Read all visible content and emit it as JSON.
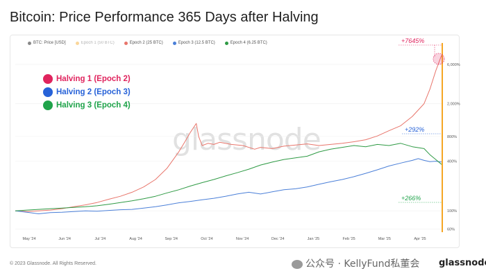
{
  "title": "Bitcoin: Price Performance 365 Days after Halving",
  "legend_top": [
    {
      "label": "BTC: Price [USD]",
      "color": "#888888"
    },
    {
      "label": "Epoch 1 (50 BTC)",
      "color": "#f5a623"
    },
    {
      "label": "Epoch 2 (25 BTC)",
      "color": "#e8756b"
    },
    {
      "label": "Epoch 3 (12.5 BTC)",
      "color": "#4a7fd8"
    },
    {
      "label": "Epoch 4 (6.25 BTC)",
      "color": "#2e9a44"
    }
  ],
  "big_legend": [
    {
      "label": "Halving 1 (Epoch 2)",
      "color": "#e0245e"
    },
    {
      "label": "Halving 2 (Epoch 3)",
      "color": "#2762d8"
    },
    {
      "label": "Halving 3 (Epoch 4)",
      "color": "#1fa34a"
    }
  ],
  "watermark": "glassnode",
  "footer": "© 2023 Glassnode. All Rights Reserved.",
  "brand_text": "公众号 · KellyFund私董会",
  "brand_logo": "glassnode",
  "chart_data": {
    "type": "line",
    "x_ticks": [
      "May '24",
      "Jun '24",
      "Jul '24",
      "Aug '24",
      "Sep '24",
      "Oct '24",
      "Nov '24",
      "Dec '24",
      "Jan '25",
      "Feb '25",
      "Mar '25",
      "Apr '25"
    ],
    "y_ticks": [
      {
        "label": "6,000%",
        "value": 6000
      },
      {
        "label": "2,000%",
        "value": 2000
      },
      {
        "label": "800%",
        "value": 800
      },
      {
        "label": "400%",
        "value": 400
      },
      {
        "label": "100%",
        "value": 100
      },
      {
        "label": "60%",
        "value": 60
      }
    ],
    "y_scale": "log",
    "ylim": [
      55,
      9000
    ],
    "day_range": [
      0,
      365
    ],
    "annotations": [
      {
        "text": "+7645%",
        "color": "#e0245e",
        "value": 7645
      },
      {
        "text": "+292%",
        "color": "#2762d8",
        "value": 292
      },
      {
        "text": "+266%",
        "color": "#1fa34a",
        "value": 266
      }
    ],
    "series": [
      {
        "name": "Epoch 2 (25 BTC)",
        "color": "#e8756b",
        "points": [
          [
            0,
            100
          ],
          [
            10,
            98
          ],
          [
            20,
            100
          ],
          [
            30,
            102
          ],
          [
            40,
            106
          ],
          [
            50,
            112
          ],
          [
            60,
            118
          ],
          [
            70,
            126
          ],
          [
            80,
            138
          ],
          [
            90,
            150
          ],
          [
            100,
            168
          ],
          [
            110,
            195
          ],
          [
            120,
            240
          ],
          [
            130,
            330
          ],
          [
            140,
            520
          ],
          [
            145,
            680
          ],
          [
            150,
            900
          ],
          [
            155,
            1150
          ],
          [
            157,
            800
          ],
          [
            160,
            620
          ],
          [
            165,
            660
          ],
          [
            170,
            640
          ],
          [
            175,
            680
          ],
          [
            185,
            640
          ],
          [
            195,
            620
          ],
          [
            205,
            560
          ],
          [
            210,
            590
          ],
          [
            220,
            570
          ],
          [
            230,
            610
          ],
          [
            240,
            630
          ],
          [
            250,
            650
          ],
          [
            260,
            620
          ],
          [
            270,
            640
          ],
          [
            280,
            660
          ],
          [
            290,
            690
          ],
          [
            300,
            730
          ],
          [
            310,
            810
          ],
          [
            320,
            940
          ],
          [
            330,
            1080
          ],
          [
            340,
            1400
          ],
          [
            350,
            2000
          ],
          [
            355,
            3000
          ],
          [
            360,
            5000
          ],
          [
            365,
            7745
          ]
        ]
      },
      {
        "name": "Epoch 3 (12.5 BTC)",
        "color": "#4a7fd8",
        "points": [
          [
            0,
            100
          ],
          [
            10,
            96
          ],
          [
            20,
            92
          ],
          [
            30,
            95
          ],
          [
            40,
            96
          ],
          [
            50,
            98
          ],
          [
            60,
            100
          ],
          [
            70,
            99
          ],
          [
            80,
            101
          ],
          [
            90,
            103
          ],
          [
            100,
            104
          ],
          [
            110,
            108
          ],
          [
            120,
            112
          ],
          [
            130,
            118
          ],
          [
            140,
            125
          ],
          [
            150,
            130
          ],
          [
            160,
            136
          ],
          [
            170,
            142
          ],
          [
            180,
            150
          ],
          [
            190,
            160
          ],
          [
            200,
            168
          ],
          [
            210,
            160
          ],
          [
            220,
            170
          ],
          [
            230,
            180
          ],
          [
            240,
            185
          ],
          [
            250,
            195
          ],
          [
            260,
            210
          ],
          [
            270,
            225
          ],
          [
            280,
            240
          ],
          [
            290,
            260
          ],
          [
            300,
            285
          ],
          [
            310,
            315
          ],
          [
            320,
            350
          ],
          [
            330,
            380
          ],
          [
            340,
            410
          ],
          [
            345,
            430
          ],
          [
            350,
            410
          ],
          [
            355,
            395
          ],
          [
            360,
            400
          ],
          [
            365,
            392
          ]
        ]
      },
      {
        "name": "Epoch 4 (6.25 BTC)",
        "color": "#2e9a44",
        "points": [
          [
            0,
            100
          ],
          [
            10,
            102
          ],
          [
            20,
            104
          ],
          [
            30,
            106
          ],
          [
            40,
            108
          ],
          [
            50,
            110
          ],
          [
            60,
            112
          ],
          [
            70,
            115
          ],
          [
            80,
            120
          ],
          [
            90,
            126
          ],
          [
            100,
            132
          ],
          [
            110,
            140
          ],
          [
            120,
            150
          ],
          [
            130,
            165
          ],
          [
            140,
            180
          ],
          [
            150,
            200
          ],
          [
            160,
            220
          ],
          [
            170,
            240
          ],
          [
            180,
            265
          ],
          [
            190,
            290
          ],
          [
            200,
            320
          ],
          [
            210,
            360
          ],
          [
            220,
            390
          ],
          [
            230,
            420
          ],
          [
            240,
            440
          ],
          [
            250,
            460
          ],
          [
            260,
            520
          ],
          [
            270,
            560
          ],
          [
            280,
            590
          ],
          [
            290,
            620
          ],
          [
            300,
            600
          ],
          [
            310,
            640
          ],
          [
            320,
            620
          ],
          [
            330,
            660
          ],
          [
            340,
            600
          ],
          [
            350,
            570
          ],
          [
            355,
            480
          ],
          [
            360,
            420
          ],
          [
            365,
            366
          ]
        ]
      }
    ]
  }
}
